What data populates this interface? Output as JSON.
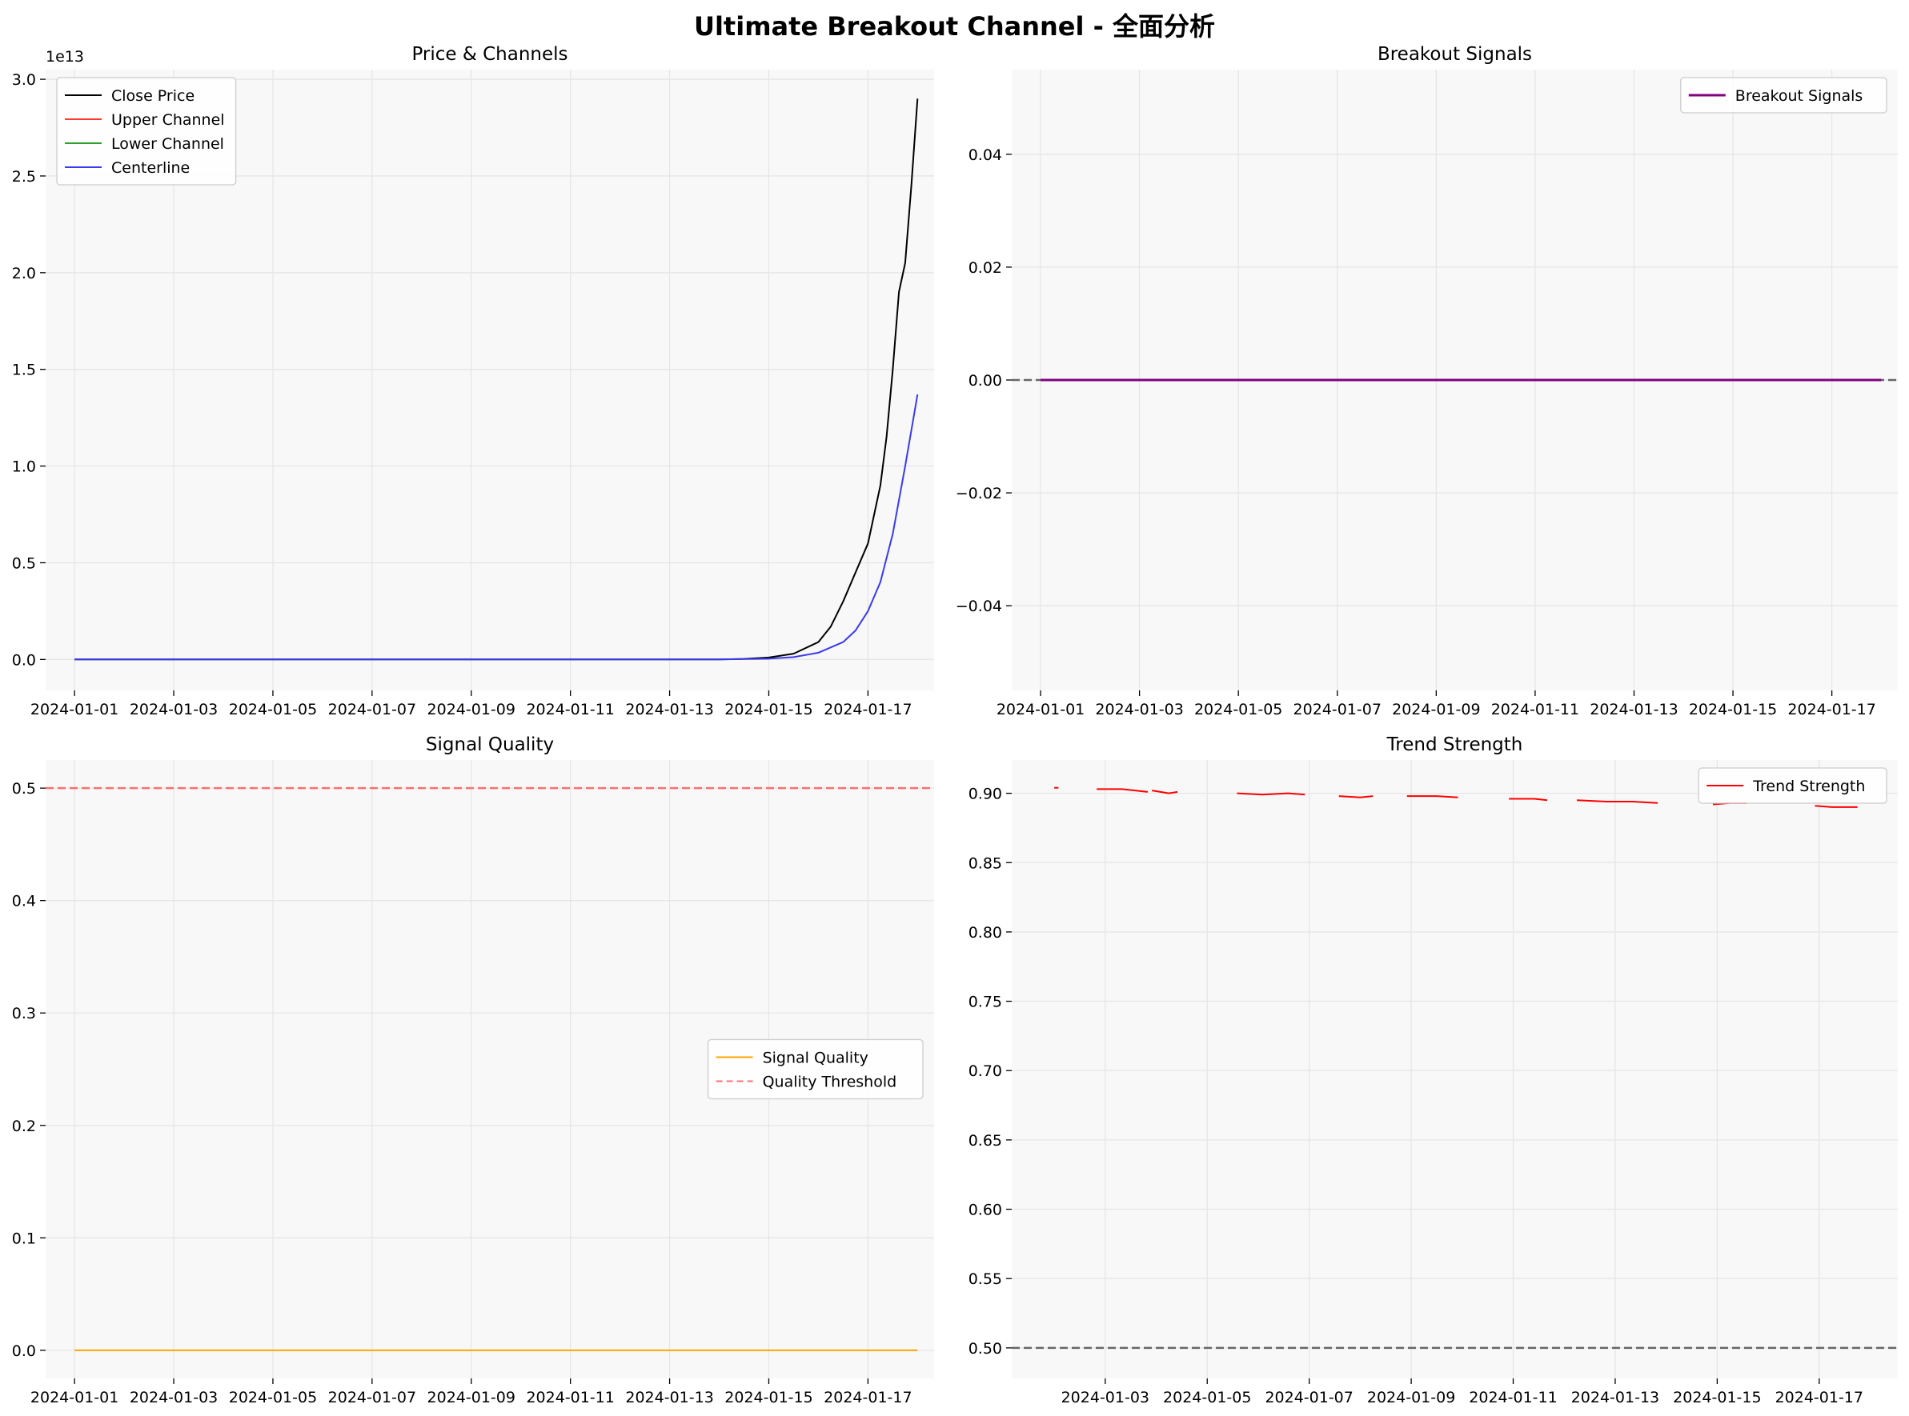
{
  "figure": {
    "suptitle": "Ultimate Breakout Channel - 全面分析"
  },
  "colors": {
    "close": "#000000",
    "upper": "#ff3b30",
    "lower": "#2ca02c",
    "center": "#3a3aee",
    "breakout": "#800080",
    "quality": "#ffa500",
    "threshold": "#ff7070",
    "trend": "#ff0000",
    "refline": "#666666",
    "axes_bg": "#f8f8f8",
    "grid": "#e6e6e6"
  },
  "chart_data": [
    {
      "id": "price",
      "type": "line",
      "title": "Price & Channels",
      "offset_label": "1e13",
      "xlim": [
        "2023-12-31T10:00",
        "2024-01-18T08:00"
      ],
      "xticks": [
        "2024-01-01",
        "2024-01-03",
        "2024-01-05",
        "2024-01-07",
        "2024-01-09",
        "2024-01-11",
        "2024-01-13",
        "2024-01-15",
        "2024-01-17"
      ],
      "ylim": [
        -0.16,
        3.05
      ],
      "yticks": [
        0.0,
        0.5,
        1.0,
        1.5,
        2.0,
        2.5,
        3.0
      ],
      "ytick_labels": [
        "0.0",
        "0.5",
        "1.0",
        "1.5",
        "2.0",
        "2.5",
        "3.0"
      ],
      "legend_loc": "upper-left",
      "series": [
        {
          "name": "Close Price",
          "color_key": "close",
          "x": [
            "2024-01-01T00:00",
            "2024-01-14T00:00",
            "2024-01-14T12:00",
            "2024-01-15T00:00",
            "2024-01-15T12:00",
            "2024-01-16T00:00",
            "2024-01-16T06:00",
            "2024-01-16T12:00",
            "2024-01-16T18:00",
            "2024-01-17T00:00",
            "2024-01-17T06:00",
            "2024-01-17T09:00",
            "2024-01-17T12:00",
            "2024-01-17T15:00",
            "2024-01-17T18:00",
            "2024-01-17T21:00",
            "2024-01-18T00:00"
          ],
          "y": [
            0.0,
            0.0,
            0.003,
            0.01,
            0.03,
            0.09,
            0.17,
            0.3,
            0.45,
            0.6,
            0.9,
            1.15,
            1.5,
            1.9,
            2.05,
            2.45,
            2.9
          ]
        },
        {
          "name": "Upper Channel",
          "color_key": "upper",
          "x": [],
          "y": []
        },
        {
          "name": "Lower Channel",
          "color_key": "lower",
          "x": [],
          "y": []
        },
        {
          "name": "Centerline",
          "color_key": "center",
          "x": [
            "2024-01-01T00:00",
            "2024-01-14T00:00",
            "2024-01-15T00:00",
            "2024-01-15T12:00",
            "2024-01-16T00:00",
            "2024-01-16T12:00",
            "2024-01-16T18:00",
            "2024-01-17T00:00",
            "2024-01-17T06:00",
            "2024-01-17T12:00",
            "2024-01-17T18:00",
            "2024-01-18T00:00"
          ],
          "y": [
            0.0,
            0.0,
            0.004,
            0.012,
            0.035,
            0.09,
            0.15,
            0.25,
            0.4,
            0.65,
            1.0,
            1.37
          ]
        }
      ]
    },
    {
      "id": "breakout",
      "type": "line",
      "title": "Breakout Signals",
      "xlim": [
        "2023-12-31T10:00",
        "2024-01-18T08:00"
      ],
      "xticks": [
        "2024-01-01",
        "2024-01-03",
        "2024-01-05",
        "2024-01-07",
        "2024-01-09",
        "2024-01-11",
        "2024-01-13",
        "2024-01-15",
        "2024-01-17"
      ],
      "ylim": [
        -0.055,
        0.055
      ],
      "yticks": [
        -0.04,
        -0.02,
        0.0,
        0.02,
        0.04
      ],
      "ytick_labels": [
        "−0.04",
        "−0.02",
        "0.00",
        "0.02",
        "0.04"
      ],
      "legend_loc": "upper-right",
      "hline": {
        "y": 0.0,
        "color_key": "refline",
        "dashed": true
      },
      "series": [
        {
          "name": "Breakout Signals",
          "color_key": "breakout",
          "width": 3,
          "x": [
            "2024-01-01T00:00",
            "2024-01-18T00:00"
          ],
          "y": [
            0.0,
            0.0
          ]
        }
      ]
    },
    {
      "id": "quality",
      "type": "line",
      "title": "Signal Quality",
      "xlim": [
        "2023-12-31T10:00",
        "2024-01-18T08:00"
      ],
      "xticks": [
        "2024-01-01",
        "2024-01-03",
        "2024-01-05",
        "2024-01-07",
        "2024-01-09",
        "2024-01-11",
        "2024-01-13",
        "2024-01-15",
        "2024-01-17"
      ],
      "ylim": [
        -0.025,
        0.525
      ],
      "yticks": [
        0.0,
        0.1,
        0.2,
        0.3,
        0.4,
        0.5
      ],
      "ytick_labels": [
        "0.0",
        "0.1",
        "0.2",
        "0.3",
        "0.4",
        "0.5"
      ],
      "legend_loc": "center-right",
      "hline": {
        "y": 0.5,
        "color_key": "threshold",
        "dashed": true,
        "name": "Quality Threshold"
      },
      "series": [
        {
          "name": "Signal Quality",
          "color_key": "quality",
          "x": [
            "2024-01-01T00:00",
            "2024-01-18T00:00"
          ],
          "y": [
            0.0,
            0.0
          ]
        }
      ]
    },
    {
      "id": "trend",
      "type": "line",
      "title": "Trend Strength",
      "xlim": [
        "2024-01-01T04:00",
        "2024-01-18T13:00"
      ],
      "xticks": [
        "2024-01-03",
        "2024-01-05",
        "2024-01-07",
        "2024-01-09",
        "2024-01-11",
        "2024-01-13",
        "2024-01-15",
        "2024-01-17"
      ],
      "ylim": [
        0.478,
        0.924
      ],
      "yticks": [
        0.5,
        0.55,
        0.6,
        0.65,
        0.7,
        0.75,
        0.8,
        0.85,
        0.9
      ],
      "ytick_labels": [
        "0.50",
        "0.55",
        "0.60",
        "0.65",
        "0.70",
        "0.75",
        "0.80",
        "0.85",
        "0.90"
      ],
      "legend_loc": "upper-right",
      "hline": {
        "y": 0.5,
        "color_key": "refline",
        "dashed": true
      },
      "series": [
        {
          "name": "Trend Strength",
          "color_key": "trend",
          "segments": [
            {
              "x": [
                "2024-01-02T00:00",
                "2024-01-02T02:00"
              ],
              "y": [
                0.904,
                0.904
              ]
            },
            {
              "x": [
                "2024-01-02T20:00",
                "2024-01-03T08:00",
                "2024-01-03T20:00"
              ],
              "y": [
                0.903,
                0.903,
                0.901
              ]
            },
            {
              "x": [
                "2024-01-03T22:00",
                "2024-01-04T06:00",
                "2024-01-04T10:00"
              ],
              "y": [
                0.902,
                0.9,
                0.901
              ]
            },
            {
              "x": [
                "2024-01-05T14:00",
                "2024-01-06T02:00",
                "2024-01-06T14:00",
                "2024-01-06T22:00"
              ],
              "y": [
                0.9,
                0.899,
                0.9,
                0.899
              ]
            },
            {
              "x": [
                "2024-01-07T14:00",
                "2024-01-08T00:00",
                "2024-01-08T06:00"
              ],
              "y": [
                0.898,
                0.897,
                0.898
              ]
            },
            {
              "x": [
                "2024-01-08T22:00",
                "2024-01-09T12:00",
                "2024-01-09T22:00"
              ],
              "y": [
                0.898,
                0.898,
                0.897
              ]
            },
            {
              "x": [
                "2024-01-10T22:00",
                "2024-01-11T10:00",
                "2024-01-11T16:00"
              ],
              "y": [
                0.896,
                0.896,
                0.895
              ]
            },
            {
              "x": [
                "2024-01-12T06:00",
                "2024-01-12T20:00",
                "2024-01-13T08:00",
                "2024-01-13T20:00"
              ],
              "y": [
                0.895,
                0.894,
                0.894,
                0.893
              ]
            },
            {
              "x": [
                "2024-01-14T22:00",
                "2024-01-15T06:00",
                "2024-01-15T14:00"
              ],
              "y": [
                0.892,
                0.893,
                0.893
              ]
            },
            {
              "x": [
                "2024-01-16T22:00",
                "2024-01-17T06:00",
                "2024-01-17T18:00"
              ],
              "y": [
                0.891,
                0.89,
                0.89
              ]
            }
          ]
        }
      ]
    }
  ]
}
